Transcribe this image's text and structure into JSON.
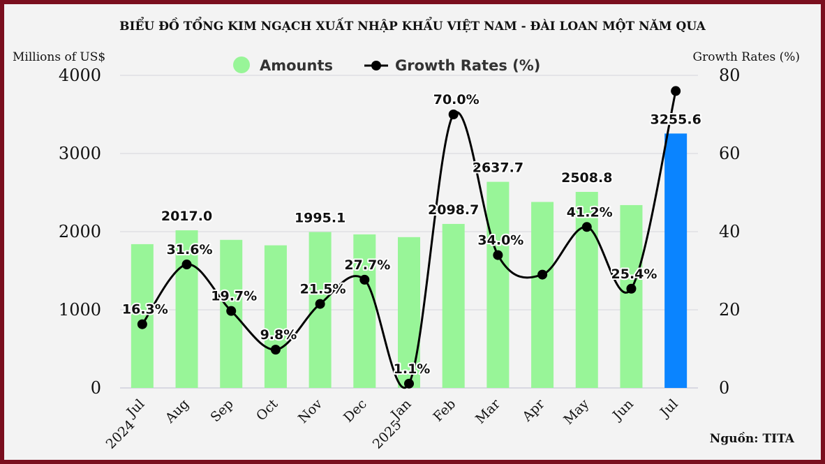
{
  "chart_data": {
    "type": "bar",
    "title": "BIỂU ĐỒ TỔNG KIM NGẠCH XUẤT NHẬP KHẨU VIỆT NAM - ĐÀI LOAN MỘT NĂM QUA",
    "ylabel": "Millions of US$",
    "ylabel_right": "Growth Rates (%)",
    "source": "Nguồn: TITA",
    "categories": [
      "Jul",
      "Aug",
      "Sep",
      "Oct",
      "Nov",
      "Dec",
      "Jan",
      "Feb",
      "Mar",
      "Apr",
      "May",
      "Jun",
      "Jul"
    ],
    "year_labels": [
      {
        "category_index": 0,
        "text": "2024"
      },
      {
        "category_index": 6,
        "text": "2025"
      }
    ],
    "ylim": [
      0,
      4000
    ],
    "yticks": [
      0,
      1000,
      2000,
      3000,
      4000
    ],
    "ylim_right": [
      0,
      80
    ],
    "yticks_right": [
      0,
      20,
      40,
      60,
      80
    ],
    "grid": true,
    "legend_position": "top-center",
    "series": [
      {
        "name": "Amounts",
        "kind": "bar",
        "color": "#98f598",
        "highlight_color": "#0a84ff",
        "highlight_index": 12,
        "values": [
          1840,
          2017.0,
          1895,
          1825,
          1995.1,
          1965,
          1930,
          2098.7,
          2637.7,
          2380,
          2508.8,
          2340,
          3255.6
        ],
        "data_labels": {
          "1": "2017.0",
          "4": "1995.1",
          "7": "2098.7",
          "8": "2637.7",
          "10": "2508.8",
          "12": "3255.6"
        }
      },
      {
        "name": "Growth Rates (%)",
        "kind": "line",
        "axis": "right",
        "color": "#000000",
        "values": [
          16.3,
          31.6,
          19.7,
          9.8,
          21.5,
          27.7,
          1.1,
          70.0,
          34.0,
          29.0,
          41.2,
          25.4,
          76.0
        ],
        "data_labels": {
          "0": "16.3%",
          "1": "31.6%",
          "2": "19.7%",
          "3": "9.8%",
          "4": "21.5%",
          "5": "27.7%",
          "6": "1.1%",
          "7": "70.0%",
          "8": "34.0%",
          "10": "41.2%",
          "11": "25.4%"
        }
      }
    ]
  }
}
